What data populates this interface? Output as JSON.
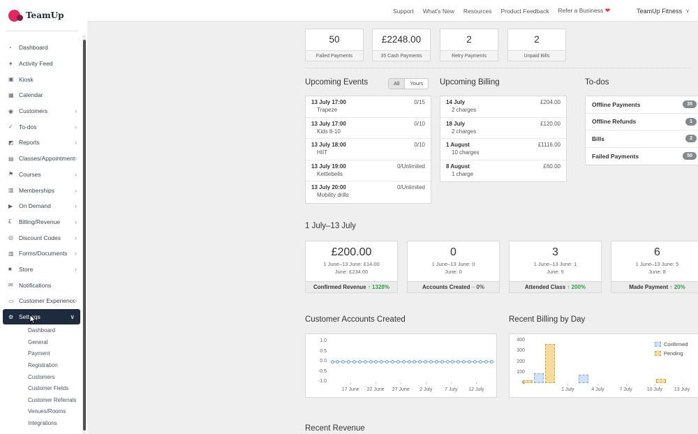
{
  "brand": {
    "name": "TeamUp"
  },
  "topnav": {
    "links": [
      "Support",
      "What's New",
      "Resources",
      "Product Feedback",
      "Refer a Business"
    ],
    "heart": "❤",
    "account": "TeamUp Fitness",
    "account_chevron": "∨"
  },
  "sidebar": {
    "items": [
      {
        "label": "Dashboard",
        "icon": "dashboard-icon",
        "glyph": "◔",
        "chevron": false,
        "active": false
      },
      {
        "label": "Activity Feed",
        "icon": "activity-feed-icon",
        "glyph": "✦",
        "chevron": false,
        "active": false
      },
      {
        "label": "Kiosk",
        "icon": "kiosk-icon",
        "glyph": "▣",
        "chevron": false,
        "active": false
      },
      {
        "label": "Calendar",
        "icon": "calendar-icon",
        "glyph": "▦",
        "chevron": false,
        "active": false
      },
      {
        "label": "Customers",
        "icon": "customers-icon",
        "glyph": "◉",
        "chevron": true,
        "active": false
      },
      {
        "label": "To-dos",
        "icon": "todos-icon",
        "glyph": "✓",
        "chevron": true,
        "active": false
      },
      {
        "label": "Reports",
        "icon": "reports-icon",
        "glyph": "◩",
        "chevron": true,
        "active": false
      },
      {
        "label": "Classes/Appointments",
        "icon": "classes-icon",
        "glyph": "▤",
        "chevron": true,
        "active": false
      },
      {
        "label": "Courses",
        "icon": "courses-icon",
        "glyph": "⚑",
        "chevron": true,
        "active": false
      },
      {
        "label": "Memberships",
        "icon": "memberships-icon",
        "glyph": "▥",
        "chevron": true,
        "active": false
      },
      {
        "label": "On Demand",
        "icon": "on-demand-icon",
        "glyph": "▶",
        "chevron": true,
        "active": false
      },
      {
        "label": "Billing/Revenue",
        "icon": "billing-icon",
        "glyph": "£",
        "chevron": true,
        "active": false
      },
      {
        "label": "Discount Codes",
        "icon": "discount-codes-icon",
        "glyph": "◎",
        "chevron": true,
        "active": false
      },
      {
        "label": "Forms/Documents",
        "icon": "forms-icon",
        "glyph": "▥",
        "chevron": true,
        "active": false
      },
      {
        "label": "Store",
        "icon": "store-icon",
        "glyph": "■",
        "chevron": true,
        "active": false
      },
      {
        "label": "Notifications",
        "icon": "notifications-icon",
        "glyph": "✉",
        "chevron": false,
        "active": false
      },
      {
        "label": "Customer Experience",
        "icon": "customer-experience-icon",
        "glyph": "▭",
        "chevron": true,
        "active": false
      },
      {
        "label": "Settings",
        "icon": "settings-icon",
        "glyph": "⚙",
        "chevron": true,
        "active": true,
        "expanded": true
      }
    ],
    "subitems": [
      "Dashboard",
      "General",
      "Payment",
      "Registration",
      "Customers",
      "Customer Fields",
      "Customer Referrals",
      "Venues/Rooms",
      "Integrations"
    ]
  },
  "stats": [
    {
      "value": "50",
      "label": "Failed Payments"
    },
    {
      "value": "£2248.00",
      "label": "35 Cash Payments"
    },
    {
      "value": "2",
      "label": "Retry Payments"
    },
    {
      "value": "2",
      "label": "Unpaid Bills"
    }
  ],
  "events": {
    "title": "Upcoming Events",
    "toggle": [
      "All",
      "Yours"
    ],
    "toggle_selected": "All",
    "items": [
      {
        "when": "13 July 17:00",
        "name": "Trapeze",
        "capacity": "0/15"
      },
      {
        "when": "13 July 17:00",
        "name": "Kids 8-10",
        "capacity": "0/10"
      },
      {
        "when": "13 July 18:00",
        "name": "HIIT",
        "capacity": "0/10"
      },
      {
        "when": "13 July 19:00",
        "name": "Kettlebells",
        "capacity": "0/Unlimited"
      },
      {
        "when": "13 July 20:00",
        "name": "Mobility drills",
        "capacity": "0/Unlimited"
      }
    ]
  },
  "billing": {
    "title": "Upcoming Billing",
    "items": [
      {
        "date": "14 July",
        "charges": "2 charges",
        "amount": "£204.00"
      },
      {
        "date": "18 July",
        "charges": "2 charges",
        "amount": "£120.00"
      },
      {
        "date": "1 August",
        "charges": "10 charges",
        "amount": "£1116.00"
      },
      {
        "date": "8 August",
        "charges": "1 charge",
        "amount": "£60.00"
      }
    ]
  },
  "todos": {
    "title": "To-dos",
    "items": [
      {
        "label": "Offline Payments",
        "count": "35"
      },
      {
        "label": "Offline Refunds",
        "count": "1"
      },
      {
        "label": "Bills",
        "count": "2"
      },
      {
        "label": "Failed Payments",
        "count": "50"
      }
    ]
  },
  "range": {
    "title": "1 July–13 July",
    "cards": [
      {
        "value": "£200.00",
        "prev": "1 June–13 June: £14.00",
        "month": "June: £234.00",
        "label": "Confirmed Revenue",
        "trend": "1328%",
        "dir": "up"
      },
      {
        "value": "0",
        "prev": "1 June–13 June: 0",
        "month": "June: 0",
        "label": "Accounts Created",
        "trend": "0%",
        "dir": "flat"
      },
      {
        "value": "3",
        "prev": "1 June–13 June: 1",
        "month": "June: 5",
        "label": "Attended Class",
        "trend": "200%",
        "dir": "up"
      },
      {
        "value": "6",
        "prev": "1 June–13 June: 5",
        "month": "June: 8",
        "label": "Made Payment",
        "trend": "20%",
        "dir": "up"
      }
    ]
  },
  "chart_data": [
    {
      "type": "line",
      "title": "Customer Accounts Created",
      "x_range": "14 June – 13 July",
      "values": [
        0,
        0,
        0,
        0,
        0,
        0,
        0,
        0,
        0,
        0,
        0,
        0,
        0,
        0,
        0,
        0,
        0,
        0,
        0,
        0,
        0,
        0,
        0,
        0,
        0,
        0,
        0,
        0,
        0,
        0
      ],
      "ylim": [
        -1.0,
        1.0
      ],
      "y_ticks": [
        "1.0",
        "0.5",
        "0.0",
        "-0.5",
        "-1.0"
      ],
      "x_ticks": [
        {
          "label": "17 June",
          "pos": 0.115
        },
        {
          "label": "22 June",
          "pos": 0.273
        },
        {
          "label": "27 June",
          "pos": 0.431
        },
        {
          "label": "2 July",
          "pos": 0.589
        },
        {
          "label": "7 July",
          "pos": 0.747
        },
        {
          "label": "12 July",
          "pos": 0.905
        }
      ],
      "grid": false,
      "marker": "circle"
    },
    {
      "type": "bar",
      "title": "Recent Billing by Day",
      "ylim": [
        0,
        400
      ],
      "y_ticks": [
        "400",
        "300",
        "200",
        "100",
        "0"
      ],
      "x_ticks": [
        {
          "label": "1 July",
          "pos": 0.165
        },
        {
          "label": "4 July",
          "pos": 0.385
        },
        {
          "label": "7 July",
          "pos": 0.59
        },
        {
          "label": "10 July",
          "pos": 0.8
        },
        {
          "label": "13 July",
          "pos": 1.0
        }
      ],
      "bars": [
        {
          "series": "Pending",
          "date": "29 June",
          "value": 25,
          "pos": 0.0
        },
        {
          "series": "Confirmed",
          "date": "30 June",
          "value": 95,
          "pos": 0.071
        },
        {
          "series": "Pending",
          "date": "1 July",
          "value": 370,
          "pos": 0.142
        },
        {
          "series": "Confirmed",
          "date": "4 July",
          "value": 80,
          "pos": 0.354
        },
        {
          "series": "Pending",
          "date": "11 July",
          "value": 40,
          "pos": 0.845
        }
      ],
      "legend": [
        "Confirmed",
        "Pending"
      ],
      "legend_position": "top-right",
      "colors": {
        "confirmed": "#cfe3f6",
        "pending": "#f6dc9c"
      },
      "grid": false
    }
  ],
  "recent_revenue_title": "Recent Revenue"
}
